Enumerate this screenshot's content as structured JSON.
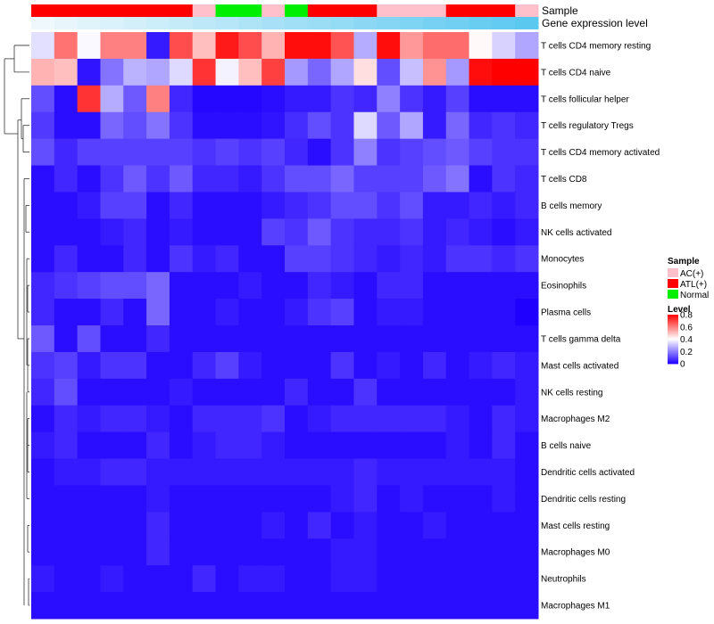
{
  "chart_data": {
    "type": "heatmap",
    "title": "",
    "annotation_tracks": [
      {
        "label": "Sample",
        "values": [
          "ATL(+)",
          "ATL(+)",
          "ATL(+)",
          "ATL(+)",
          "ATL(+)",
          "ATL(+)",
          "ATL(+)",
          "AC(+)",
          "Normal",
          "Normal",
          "AC(+)",
          "Normal",
          "ATL(+)",
          "ATL(+)",
          "ATL(+)",
          "AC(+)",
          "AC(+)",
          "AC(+)",
          "ATL(+)",
          "ATL(+)",
          "ATL(+)",
          "AC(+)"
        ]
      },
      {
        "label": "Gene expression level",
        "values": [
          0.03,
          0.08,
          0.13,
          0.17,
          0.22,
          0.26,
          0.31,
          0.36,
          0.4,
          0.45,
          0.5,
          0.54,
          0.59,
          0.63,
          0.68,
          0.73,
          0.77,
          0.82,
          0.86,
          0.91,
          0.95,
          1.0
        ]
      }
    ],
    "rows": [
      "T cells CD4 memory resting",
      "T cells CD4 naive",
      "T cells follicular helper",
      "T cells regulatory  Tregs",
      "T cells CD4 memory activated",
      "T cells CD8",
      "B cells memory",
      "NK cells activated",
      "Monocytes",
      "Eosinophils",
      "Plasma cells",
      "T cells gamma delta",
      "Mast cells activated",
      "NK cells resting",
      "Macrophages M2",
      "B cells naive",
      "Dendritic cells activated",
      "Dendritic cells resting",
      "Mast cells resting",
      "Macrophages M0",
      "Neutrophils",
      "Macrophages M1"
    ],
    "values": [
      [
        0.35,
        0.62,
        0.39,
        0.6,
        0.6,
        0.04,
        0.68,
        0.5,
        0.76,
        0.68,
        0.52,
        0.78,
        0.78,
        0.67,
        0.27,
        0.78,
        0.56,
        0.63,
        0.63,
        0.41,
        0.33,
        0.26
      ],
      [
        0.52,
        0.5,
        0.03,
        0.18,
        0.28,
        0.26,
        0.34,
        0.72,
        0.38,
        0.5,
        0.7,
        0.24,
        0.16,
        0.26,
        0.45,
        0.12,
        0.3,
        0.57,
        0.24,
        0.78,
        0.8,
        0.8
      ],
      [
        0.12,
        0.02,
        0.72,
        0.27,
        0.14,
        0.6,
        0.06,
        0.01,
        0.01,
        0.01,
        0.02,
        0.04,
        0.04,
        0.08,
        0.06,
        0.2,
        0.08,
        0.04,
        0.1,
        0.02,
        0.02,
        0.02
      ],
      [
        0.09,
        0.02,
        0.02,
        0.16,
        0.12,
        0.18,
        0.08,
        0.02,
        0.02,
        0.02,
        0.03,
        0.07,
        0.12,
        0.08,
        0.34,
        0.14,
        0.26,
        0.04,
        0.16,
        0.06,
        0.08,
        0.06
      ],
      [
        0.12,
        0.06,
        0.1,
        0.1,
        0.1,
        0.1,
        0.1,
        0.08,
        0.1,
        0.08,
        0.1,
        0.06,
        0.02,
        0.08,
        0.2,
        0.08,
        0.1,
        0.12,
        0.14,
        0.1,
        0.08,
        0.08
      ],
      [
        0.02,
        0.06,
        0.02,
        0.08,
        0.14,
        0.08,
        0.14,
        0.06,
        0.06,
        0.04,
        0.08,
        0.12,
        0.12,
        0.16,
        0.1,
        0.1,
        0.1,
        0.14,
        0.18,
        0.02,
        0.08,
        0.06
      ],
      [
        0.02,
        0.02,
        0.04,
        0.1,
        0.1,
        0.02,
        0.06,
        0.02,
        0.02,
        0.02,
        0.04,
        0.06,
        0.08,
        0.12,
        0.12,
        0.08,
        0.12,
        0.04,
        0.04,
        0.06,
        0.04,
        0.06
      ],
      [
        0.02,
        0.02,
        0.02,
        0.04,
        0.06,
        0.02,
        0.04,
        0.02,
        0.02,
        0.02,
        0.1,
        0.08,
        0.14,
        0.08,
        0.06,
        0.06,
        0.08,
        0.04,
        0.06,
        0.04,
        0.02,
        0.04
      ],
      [
        0.02,
        0.06,
        0.02,
        0.02,
        0.06,
        0.02,
        0.08,
        0.04,
        0.06,
        0.02,
        0.02,
        0.1,
        0.1,
        0.08,
        0.06,
        0.04,
        0.06,
        0.04,
        0.08,
        0.08,
        0.06,
        0.08
      ],
      [
        0.06,
        0.08,
        0.1,
        0.12,
        0.12,
        0.16,
        0.02,
        0.02,
        0.02,
        0.04,
        0.02,
        0.02,
        0.06,
        0.04,
        0.02,
        0.06,
        0.06,
        0.02,
        0.02,
        0.02,
        0.02,
        0.02
      ],
      [
        0.06,
        0.02,
        0.02,
        0.06,
        0.02,
        0.16,
        0.02,
        0.02,
        0.04,
        0.02,
        0.02,
        0.04,
        0.08,
        0.1,
        0.02,
        0.04,
        0.04,
        0.02,
        0.02,
        0.02,
        0.02,
        0.0
      ],
      [
        0.14,
        0.02,
        0.12,
        0.02,
        0.02,
        0.06,
        0.02,
        0.02,
        0.02,
        0.02,
        0.02,
        0.02,
        0.02,
        0.02,
        0.02,
        0.02,
        0.02,
        0.02,
        0.02,
        0.02,
        0.02,
        0.02
      ],
      [
        0.08,
        0.1,
        0.04,
        0.08,
        0.08,
        0.02,
        0.02,
        0.06,
        0.1,
        0.04,
        0.02,
        0.02,
        0.02,
        0.08,
        0.02,
        0.04,
        0.02,
        0.06,
        0.02,
        0.04,
        0.06,
        0.04
      ],
      [
        0.06,
        0.12,
        0.02,
        0.02,
        0.02,
        0.02,
        0.04,
        0.02,
        0.02,
        0.02,
        0.02,
        0.06,
        0.02,
        0.02,
        0.08,
        0.02,
        0.02,
        0.02,
        0.02,
        0.02,
        0.02,
        0.04
      ],
      [
        0.02,
        0.06,
        0.04,
        0.06,
        0.06,
        0.04,
        0.02,
        0.06,
        0.06,
        0.06,
        0.08,
        0.02,
        0.04,
        0.06,
        0.06,
        0.06,
        0.06,
        0.06,
        0.04,
        0.02,
        0.06,
        0.04
      ],
      [
        0.04,
        0.06,
        0.02,
        0.02,
        0.02,
        0.06,
        0.02,
        0.04,
        0.06,
        0.06,
        0.04,
        0.02,
        0.02,
        0.02,
        0.02,
        0.02,
        0.02,
        0.02,
        0.04,
        0.02,
        0.06,
        0.02
      ],
      [
        0.02,
        0.04,
        0.04,
        0.06,
        0.06,
        0.04,
        0.04,
        0.04,
        0.04,
        0.04,
        0.04,
        0.04,
        0.04,
        0.04,
        0.06,
        0.04,
        0.04,
        0.04,
        0.04,
        0.04,
        0.04,
        0.02
      ],
      [
        0.02,
        0.02,
        0.02,
        0.02,
        0.02,
        0.04,
        0.02,
        0.02,
        0.02,
        0.02,
        0.02,
        0.02,
        0.02,
        0.04,
        0.06,
        0.02,
        0.04,
        0.02,
        0.02,
        0.02,
        0.04,
        0.02
      ],
      [
        0.02,
        0.02,
        0.02,
        0.02,
        0.02,
        0.06,
        0.02,
        0.02,
        0.02,
        0.02,
        0.04,
        0.02,
        0.06,
        0.02,
        0.04,
        0.02,
        0.02,
        0.04,
        0.02,
        0.02,
        0.02,
        0.02
      ],
      [
        0.02,
        0.02,
        0.02,
        0.02,
        0.02,
        0.06,
        0.02,
        0.02,
        0.02,
        0.02,
        0.02,
        0.02,
        0.02,
        0.04,
        0.04,
        0.02,
        0.02,
        0.02,
        0.02,
        0.02,
        0.02,
        0.02
      ],
      [
        0.04,
        0.02,
        0.02,
        0.04,
        0.02,
        0.02,
        0.02,
        0.06,
        0.02,
        0.04,
        0.04,
        0.02,
        0.02,
        0.04,
        0.04,
        0.02,
        0.02,
        0.02,
        0.02,
        0.02,
        0.02,
        0.02
      ],
      [
        0.02,
        0.02,
        0.02,
        0.02,
        0.02,
        0.02,
        0.02,
        0.02,
        0.02,
        0.02,
        0.02,
        0.02,
        0.02,
        0.02,
        0.02,
        0.02,
        0.02,
        0.02,
        0.02,
        0.02,
        0.02,
        0.02
      ]
    ],
    "color_scale": {
      "title": "Level",
      "range": [
        0,
        0.8
      ],
      "stops": [
        "#1f00ff",
        "#ffffff",
        "#ff0000"
      ],
      "ticks": [
        "0.8",
        "0.6",
        "0.4",
        "0.2",
        "0"
      ]
    },
    "legend": {
      "title": "Sample",
      "placement": "right",
      "entries": [
        {
          "label": "AC(+)",
          "color": "#ffc0cb"
        },
        {
          "label": "ATL(+)",
          "color": "#ff0000"
        },
        {
          "label": "Normal",
          "color": "#00ee00"
        }
      ]
    },
    "expression_track_colors": [
      "#f4fafd",
      "#5bc8f0"
    ],
    "dendrogram": {
      "placement": "left",
      "side": "rows"
    }
  }
}
